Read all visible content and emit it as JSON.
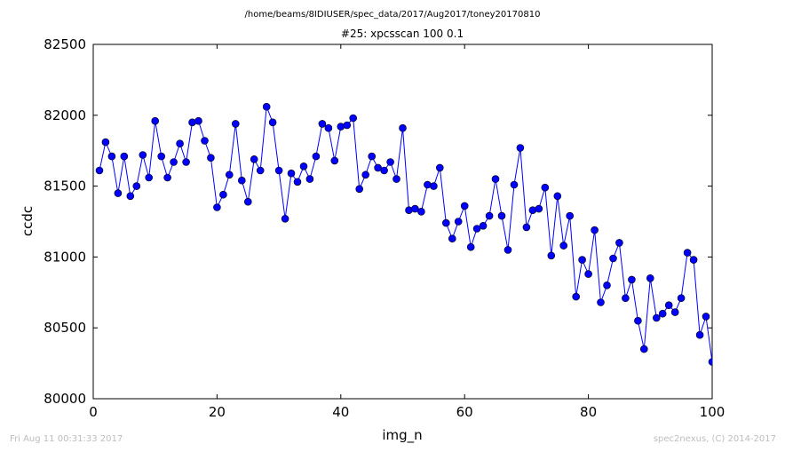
{
  "chart_data": {
    "type": "line",
    "suptitle": "/home/beams/8IDIUSER/spec_data/2017/Aug2017/toney20170810",
    "title": "#25: xpcsscan 100 0.1",
    "xlabel": "img_n",
    "ylabel": "ccdc",
    "xlim": [
      0,
      100
    ],
    "ylim": [
      80000,
      82500
    ],
    "xticks": [
      0,
      20,
      40,
      60,
      80,
      100
    ],
    "yticks": [
      80000,
      80500,
      81000,
      81500,
      82000,
      82500
    ],
    "grid": false,
    "marker": "circle",
    "color": "#0000ff",
    "x": [
      1,
      2,
      3,
      4,
      5,
      6,
      7,
      8,
      9,
      10,
      11,
      12,
      13,
      14,
      15,
      16,
      17,
      18,
      19,
      20,
      21,
      22,
      23,
      24,
      25,
      26,
      27,
      28,
      29,
      30,
      31,
      32,
      33,
      34,
      35,
      36,
      37,
      38,
      39,
      40,
      41,
      42,
      43,
      44,
      45,
      46,
      47,
      48,
      49,
      50,
      51,
      52,
      53,
      54,
      55,
      56,
      57,
      58,
      59,
      60,
      61,
      62,
      63,
      64,
      65,
      66,
      67,
      68,
      69,
      70,
      71,
      72,
      73,
      74,
      75,
      76,
      77,
      78,
      79,
      80,
      81,
      82,
      83,
      84,
      85,
      86,
      87,
      88,
      89,
      90,
      91,
      92,
      93,
      94,
      95,
      96,
      97,
      98,
      99,
      100
    ],
    "y": [
      81610,
      81810,
      81710,
      81450,
      81710,
      81430,
      81500,
      81720,
      81560,
      81960,
      81710,
      81560,
      81670,
      81800,
      81670,
      81950,
      81960,
      81820,
      81700,
      81350,
      81440,
      81580,
      81940,
      81540,
      81390,
      81690,
      81610,
      82060,
      81950,
      81610,
      81270,
      81590,
      81530,
      81640,
      81550,
      81710,
      81940,
      81910,
      81680,
      81920,
      81930,
      81980,
      81480,
      81580,
      81710,
      81630,
      81610,
      81670,
      81550,
      81910,
      81330,
      81340,
      81320,
      81510,
      81500,
      81630,
      81240,
      81130,
      81250,
      81360,
      81070,
      81200,
      81220,
      81290,
      81550,
      81290,
      81050,
      81510,
      81770,
      81210,
      81330,
      81340,
      81490,
      81010,
      81430,
      81080,
      81290,
      80720,
      80980,
      80880,
      81190,
      80680,
      80800,
      80990,
      81100,
      80710,
      80840,
      80550,
      80350,
      80850,
      80570,
      80600,
      80660,
      80610,
      80710,
      81030,
      80980,
      80450,
      80580,
      80260
    ]
  },
  "footer": {
    "timestamp": "Fri Aug 11 00:31:33 2017",
    "credit": "spec2nexus, (C) 2014-2017"
  }
}
